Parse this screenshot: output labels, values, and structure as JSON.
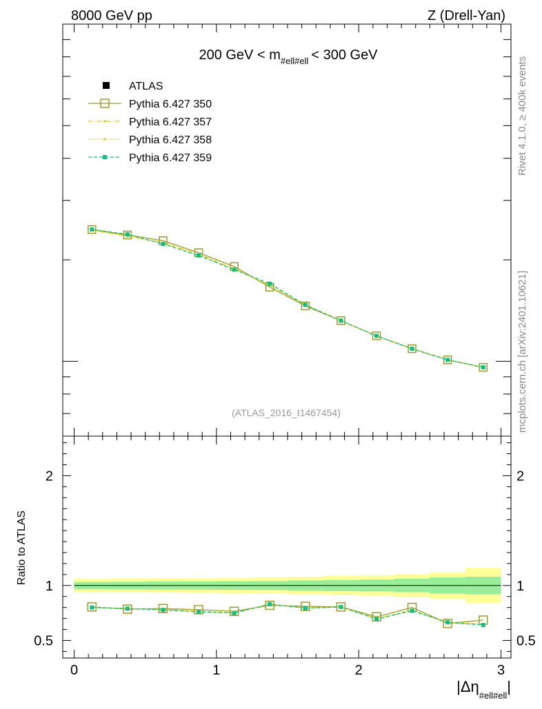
{
  "header": {
    "left": "8000 GeV pp",
    "right": "Z (Drell-Yan)"
  },
  "side_labels": {
    "rivet": "Rivet 4.1.0, ≥ 400k events",
    "mcplots": "mcplots.cern.ch [arXiv:2401.10621]"
  },
  "chart_data": [
    {
      "type": "line",
      "panel": "main",
      "title": "200 GeV < m",
      "title_sub": "#ell#ell",
      "title_suffix": "< 300 GeV",
      "watermark": "(ATLAS_2016_I1467454)",
      "legend_position": "top-left",
      "yscale": "log",
      "ylim": [
        0.6,
        10
      ],
      "x": [
        0.125,
        0.375,
        0.625,
        0.875,
        1.125,
        1.375,
        1.625,
        1.875,
        2.125,
        2.375,
        2.625,
        2.875
      ],
      "series": [
        {
          "name": "ATLAS",
          "style": "data",
          "color": "#000000",
          "values": [
            2.46,
            2.38,
            2.23,
            2.06,
            1.87,
            1.66,
            1.47,
            1.33,
            1.2,
            1.1,
            1.02,
            0.965
          ]
        },
        {
          "name": "Pythia 6.427 350",
          "style": "solid-open-square",
          "color": "#9a9a2a",
          "values": [
            2.46,
            2.37,
            2.28,
            2.1,
            1.91,
            1.66,
            1.46,
            1.32,
            1.19,
            1.09,
            1.01,
            0.96
          ]
        },
        {
          "name": "Pythia 6.427 357",
          "style": "dashdot-dot",
          "color": "#e8c000",
          "values": [
            2.45,
            2.35,
            2.25,
            2.08,
            1.88,
            1.68,
            1.47,
            1.32,
            1.19,
            1.09,
            1.01,
            0.96
          ]
        },
        {
          "name": "Pythia 6.427 358",
          "style": "dotted-dot",
          "color": "#cccc00",
          "values": [
            2.45,
            2.35,
            2.24,
            2.07,
            1.88,
            1.68,
            1.47,
            1.32,
            1.19,
            1.09,
            1.01,
            0.96
          ]
        },
        {
          "name": "Pythia 6.427 359",
          "style": "dashed-filled-square",
          "color": "#10c080",
          "values": [
            2.46,
            2.38,
            2.23,
            2.06,
            1.87,
            1.7,
            1.47,
            1.32,
            1.19,
            1.09,
            1.01,
            0.96
          ]
        }
      ]
    },
    {
      "type": "line",
      "panel": "ratio",
      "ylabel": "Ratio to ATLAS",
      "xlabel": "|Δη",
      "xlabel_sub": "#ell#ell",
      "xlabel_suffix": "|",
      "xlim": [
        -0.08,
        3.07
      ],
      "ylim": [
        0.34,
        2.36
      ],
      "x_ticks": [
        0,
        1,
        2,
        3
      ],
      "x_tick_labels": [
        "0",
        "1",
        "2",
        "3"
      ],
      "y_ticks": [
        0.5,
        1,
        2
      ],
      "y_tick_labels": [
        "0.5",
        "1",
        "2"
      ],
      "bin_edges": [
        0,
        0.25,
        0.5,
        0.75,
        1.0,
        1.25,
        1.5,
        1.75,
        2.0,
        2.25,
        2.5,
        2.75,
        3.0
      ],
      "band_outer": {
        "color": "#ffff99",
        "half_widths": [
          0.06,
          0.063,
          0.065,
          0.067,
          0.07,
          0.072,
          0.08,
          0.088,
          0.094,
          0.105,
          0.12,
          0.16
        ]
      },
      "band_inner": {
        "color": "#99ee99",
        "half_widths": [
          0.032,
          0.034,
          0.036,
          0.037,
          0.039,
          0.04,
          0.046,
          0.05,
          0.054,
          0.062,
          0.075,
          0.08
        ]
      },
      "reference_value": 1,
      "x": [
        0.125,
        0.375,
        0.625,
        0.875,
        1.125,
        1.375,
        1.625,
        1.875,
        2.125,
        2.375,
        2.625,
        2.875
      ],
      "series": [
        {
          "name": "Pythia 6.427 350",
          "style": "solid-open-square",
          "color": "#9a9a2a",
          "values": [
            0.805,
            0.785,
            0.79,
            0.78,
            0.765,
            0.82,
            0.81,
            0.805,
            0.715,
            0.8,
            0.655,
            0.685
          ]
        },
        {
          "name": "Pythia 6.427 357",
          "style": "dashdot-dot",
          "color": "#e8c000",
          "values": [
            0.8,
            0.79,
            0.782,
            0.765,
            0.75,
            0.83,
            0.795,
            0.805,
            0.7,
            0.775,
            0.66,
            0.65
          ]
        },
        {
          "name": "Pythia 6.427 358",
          "style": "dotted-dot",
          "color": "#cccc00",
          "values": [
            0.8,
            0.79,
            0.782,
            0.765,
            0.75,
            0.83,
            0.795,
            0.805,
            0.7,
            0.775,
            0.66,
            0.65
          ]
        },
        {
          "name": "Pythia 6.427 359",
          "style": "dashed-filled-square",
          "color": "#10c080",
          "values": [
            0.8,
            0.79,
            0.778,
            0.76,
            0.75,
            0.83,
            0.795,
            0.805,
            0.695,
            0.77,
            0.665,
            0.64
          ]
        }
      ]
    }
  ]
}
